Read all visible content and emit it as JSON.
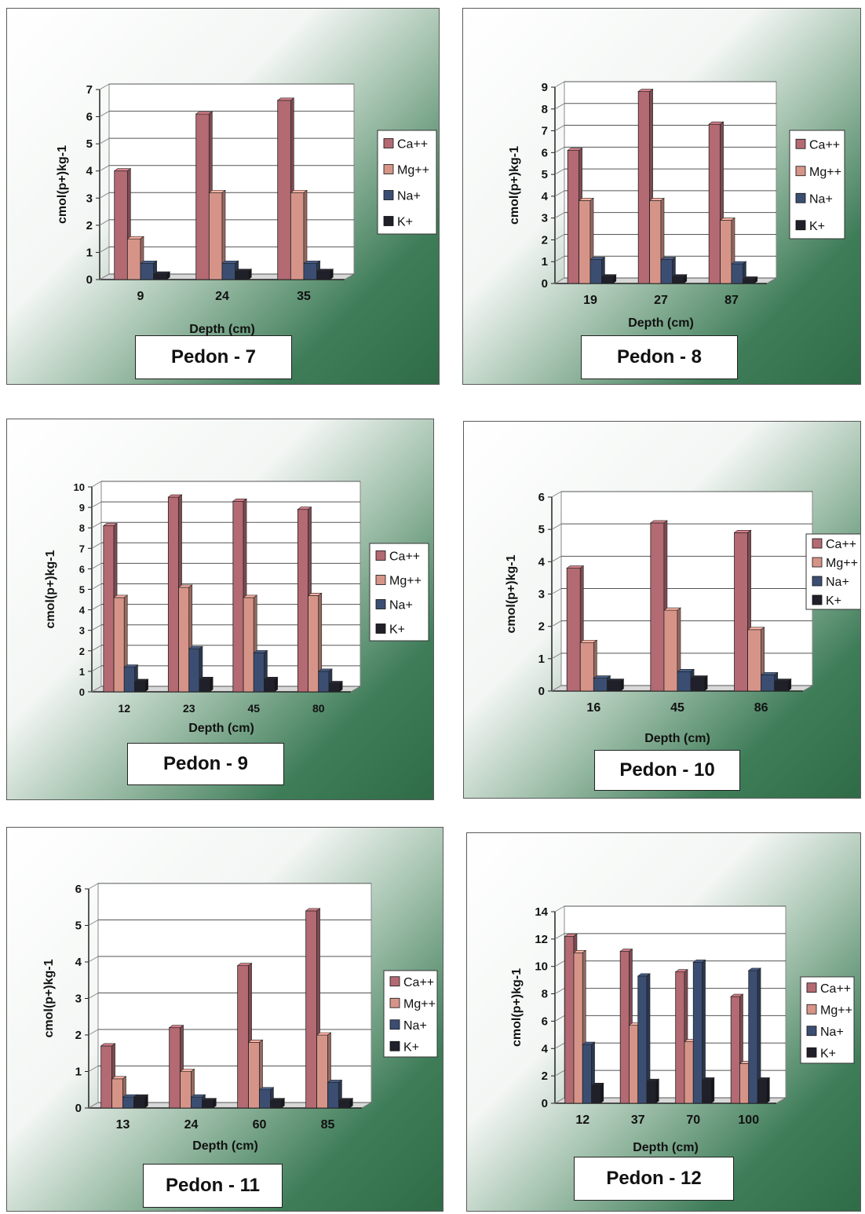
{
  "colors": {
    "Ca++": "#b36a72",
    "Mg++": "#d69488",
    "Na+": "#3b4e72",
    "K+": "#1f2029"
  },
  "charts": [
    {
      "label": "Pedon - 7",
      "chart_data": {
        "type": "bar",
        "categories": [
          "9",
          "24",
          "35"
        ],
        "series": [
          {
            "name": "Ca++",
            "values": [
              4.0,
              6.1,
              6.6
            ]
          },
          {
            "name": "Mg++",
            "values": [
              1.5,
              3.2,
              3.2
            ]
          },
          {
            "name": "Na+",
            "values": [
              0.6,
              0.6,
              0.6
            ]
          },
          {
            "name": "K+",
            "values": [
              0.2,
              0.3,
              0.3
            ]
          }
        ],
        "xlabel": "Depth (cm)",
        "ylabel": "cmol(p+)kg-1",
        "ylim": [
          0,
          7
        ],
        "yticks": [
          "0",
          "1",
          "2",
          "3",
          "4",
          "5",
          "6",
          "7"
        ],
        "legend": "right",
        "legend_labels": [
          "Ca++",
          "Mg++",
          "Na+",
          "K+"
        ]
      }
    },
    {
      "label": "Pedon - 8",
      "chart_data": {
        "type": "bar",
        "categories": [
          "19",
          "27",
          "87"
        ],
        "series": [
          {
            "name": "Ca++",
            "values": [
              6.1,
              8.8,
              7.3
            ]
          },
          {
            "name": "Mg++",
            "values": [
              3.8,
              3.8,
              2.9
            ]
          },
          {
            "name": "Na+",
            "values": [
              1.1,
              1.1,
              0.9
            ]
          },
          {
            "name": "K+",
            "values": [
              0.3,
              0.3,
              0.2
            ]
          }
        ],
        "xlabel": "Depth (cm)",
        "ylabel": "cmol(p+)kg-1",
        "ylim": [
          0,
          9
        ],
        "yticks": [
          "0",
          "1",
          "2",
          "3",
          "4",
          "5",
          "6",
          "7",
          "8",
          "9"
        ],
        "legend": "right",
        "legend_labels": [
          "Ca++",
          "Mg++",
          "Na+",
          "K+"
        ]
      }
    },
    {
      "label": "Pedon - 9",
      "chart_data": {
        "type": "bar",
        "categories": [
          "12",
          "23",
          "45",
          "80"
        ],
        "series": [
          {
            "name": "Ca++",
            "values": [
              8.1,
              9.5,
              9.3,
              8.9
            ]
          },
          {
            "name": "Mg++",
            "values": [
              4.6,
              5.1,
              4.6,
              4.7
            ]
          },
          {
            "name": "Na+",
            "values": [
              1.2,
              2.1,
              1.9,
              1.0
            ]
          },
          {
            "name": "K+",
            "values": [
              0.5,
              0.6,
              0.6,
              0.4
            ]
          }
        ],
        "xlabel": "Depth (cm)",
        "ylabel": "cmol(p+)kg-1",
        "ylim": [
          0,
          10
        ],
        "yticks": [
          "0",
          "1",
          "2",
          "3",
          "4",
          "5",
          "6",
          "7",
          "8",
          "9",
          "10"
        ],
        "legend": "right",
        "legend_labels": [
          "Ca++",
          "Mg++",
          "Na+",
          "K+"
        ]
      }
    },
    {
      "label": "Pedon - 10",
      "chart_data": {
        "type": "bar",
        "categories": [
          "16",
          "45",
          "86"
        ],
        "series": [
          {
            "name": "Ca++",
            "values": [
              3.8,
              5.2,
              4.9
            ]
          },
          {
            "name": "Mg++",
            "values": [
              1.5,
              2.5,
              1.9
            ]
          },
          {
            "name": "Na+",
            "values": [
              0.4,
              0.6,
              0.5
            ]
          },
          {
            "name": "K+",
            "values": [
              0.3,
              0.4,
              0.3
            ]
          }
        ],
        "xlabel": "Depth (cm)",
        "ylabel": "cmol(p+)kg-1",
        "ylim": [
          0,
          6
        ],
        "yticks": [
          "0",
          "1",
          "2",
          "3",
          "4",
          "5",
          "6"
        ],
        "legend": "right",
        "legend_labels": [
          "Ca++",
          "Mg++",
          "Na+",
          "K+"
        ]
      }
    },
    {
      "label": "Pedon - 11",
      "chart_data": {
        "type": "bar",
        "categories": [
          "13",
          "24",
          "60",
          "85"
        ],
        "series": [
          {
            "name": "Ca++",
            "values": [
              1.7,
              2.2,
              3.9,
              5.4
            ]
          },
          {
            "name": "Mg++",
            "values": [
              0.8,
              1.0,
              1.8,
              2.0
            ]
          },
          {
            "name": "Na+",
            "values": [
              0.3,
              0.3,
              0.5,
              0.7
            ]
          },
          {
            "name": "K+",
            "values": [
              0.3,
              0.2,
              0.2,
              0.2
            ]
          }
        ],
        "xlabel": "Depth (cm)",
        "ylabel": "cmol(p+)kg-1",
        "ylim": [
          0,
          6
        ],
        "yticks": [
          "0",
          "1",
          "2",
          "3",
          "4",
          "5",
          "6"
        ],
        "legend": "right",
        "legend_labels": [
          "Ca++",
          "Mg++",
          "Na+",
          "K+"
        ]
      }
    },
    {
      "label": "Pedon - 12",
      "chart_data": {
        "type": "bar",
        "categories": [
          "12",
          "37",
          "70",
          "100"
        ],
        "series": [
          {
            "name": "Ca++",
            "values": [
              12.2,
              11.1,
              9.6,
              7.8
            ]
          },
          {
            "name": "Mg++",
            "values": [
              11.0,
              5.7,
              4.5,
              2.9
            ]
          },
          {
            "name": "Na+",
            "values": [
              4.3,
              9.3,
              10.3,
              9.7
            ]
          },
          {
            "name": "K+",
            "values": [
              1.3,
              1.6,
              1.7,
              1.7
            ]
          }
        ],
        "xlabel": "Depth (cm)",
        "ylabel": "cmol(p+)kg-1",
        "ylim": [
          0,
          14
        ],
        "yticks": [
          "0",
          "2",
          "4",
          "6",
          "8",
          "10",
          "12",
          "14"
        ],
        "legend": "right",
        "legend_labels": [
          "Ca++",
          "Mg++",
          "Na+",
          "K+"
        ]
      }
    }
  ]
}
